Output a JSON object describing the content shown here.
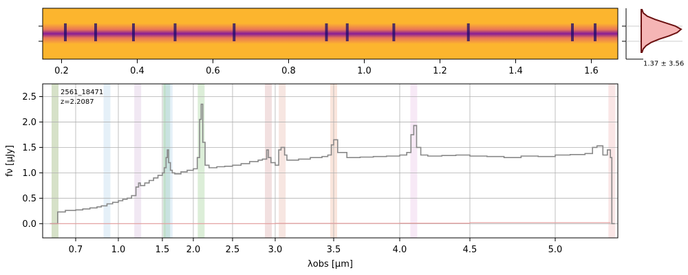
{
  "chart_data": [
    {
      "type": "heatmap",
      "name": "2D spectrum",
      "x_axis": {
        "label": "",
        "ticks": [
          0.2,
          0.4,
          0.6,
          0.8,
          1.0,
          1.2,
          1.4,
          1.6
        ],
        "tick_labels": [
          "0.2",
          "0.4",
          "0.6",
          "0.8",
          "1.0",
          "1.2",
          "1.4",
          "1.6"
        ],
        "range": [
          0.15,
          1.67
        ]
      },
      "colormap": "plasma",
      "emission_features": [
        0.21,
        0.29,
        0.39,
        0.5,
        0.656,
        0.9,
        0.955,
        1.078,
        1.275,
        1.55,
        1.61
      ]
    },
    {
      "type": "histogram",
      "name": "pixel distribution",
      "annotation": "1.37 ± 3.56",
      "profile": [
        0.02,
        0.05,
        0.15,
        0.35,
        0.6,
        0.85,
        1.0,
        0.9,
        0.7,
        0.45,
        0.25,
        0.12,
        0.05,
        0.02
      ]
    },
    {
      "type": "line",
      "name": "1D spectrum",
      "title": "",
      "annotation": [
        "2561_18471",
        "z=2.2087"
      ],
      "xlabel": "λobs [μm]",
      "ylabel": "fν [μJy]",
      "ylim": [
        -0.28,
        2.75
      ],
      "yticks": [
        0.0,
        0.5,
        1.0,
        1.5,
        2.0,
        2.5
      ],
      "ytick_labels": [
        "0.0",
        "0.5",
        "1.0",
        "1.5",
        "2.0",
        "2.5"
      ],
      "xticks": [
        0.7,
        1.0,
        1.5,
        2.0,
        2.5,
        3.0,
        3.5,
        4.0,
        4.5,
        5.0
      ],
      "xtick_labels": [
        "0.7",
        "1.0",
        "1.5",
        "2.0",
        "2.5",
        "3.0",
        "3.5",
        "4.0",
        "4.5",
        "5.0"
      ],
      "grid": true,
      "emission_bands": [
        {
          "x": 0.62,
          "color": "#b5c99a"
        },
        {
          "x": 0.92,
          "color": "#cfe4f2"
        },
        {
          "x": 1.22,
          "color": "#e6d5ea"
        },
        {
          "x": 1.57,
          "color": "#8fc6a0"
        },
        {
          "x": 1.61,
          "color": "#cfe4f2"
        },
        {
          "x": 2.1,
          "color": "#bfe0b8"
        },
        {
          "x": 2.92,
          "color": "#e7c6c6"
        },
        {
          "x": 3.06,
          "color": "#f0d2c8"
        },
        {
          "x": 3.5,
          "color": "#f6cfc0"
        },
        {
          "x": 4.1,
          "color": "#f0d7ef"
        },
        {
          "x": 5.38,
          "color": "#f6d2d2"
        }
      ],
      "series": [
        {
          "name": "flux",
          "color": "#888888",
          "x": [
            0.6,
            0.63,
            0.66,
            0.7,
            0.75,
            0.8,
            0.85,
            0.88,
            0.92,
            0.96,
            1.0,
            1.05,
            1.1,
            1.15,
            1.2,
            1.23,
            1.25,
            1.3,
            1.35,
            1.4,
            1.45,
            1.5,
            1.53,
            1.56,
            1.58,
            1.6,
            1.63,
            1.66,
            1.7,
            1.8,
            1.9,
            2.0,
            2.05,
            2.08,
            2.1,
            2.12,
            2.15,
            2.2,
            2.3,
            2.4,
            2.5,
            2.6,
            2.7,
            2.8,
            2.85,
            2.9,
            2.92,
            2.95,
            3.0,
            3.03,
            3.05,
            3.08,
            3.1,
            3.2,
            3.3,
            3.4,
            3.45,
            3.48,
            3.5,
            3.53,
            3.6,
            3.7,
            3.8,
            3.9,
            4.0,
            4.05,
            4.08,
            4.1,
            4.12,
            4.15,
            4.2,
            4.3,
            4.4,
            4.5,
            4.6,
            4.7,
            4.8,
            4.9,
            5.0,
            5.1,
            5.2,
            5.25,
            5.28,
            5.32,
            5.35,
            5.37,
            5.38,
            5.4
          ],
          "values": [
            0.0,
            0.23,
            0.26,
            0.27,
            0.29,
            0.31,
            0.33,
            0.35,
            0.39,
            0.42,
            0.45,
            0.48,
            0.5,
            0.55,
            0.72,
            0.8,
            0.75,
            0.8,
            0.85,
            0.9,
            0.95,
            1.0,
            1.1,
            1.3,
            1.45,
            1.2,
            1.05,
            1.0,
            0.98,
            1.02,
            1.05,
            1.08,
            1.3,
            2.05,
            2.35,
            1.6,
            1.15,
            1.1,
            1.12,
            1.13,
            1.15,
            1.18,
            1.22,
            1.25,
            1.27,
            1.45,
            1.3,
            1.2,
            1.15,
            1.45,
            1.5,
            1.35,
            1.25,
            1.27,
            1.3,
            1.32,
            1.35,
            1.55,
            1.65,
            1.4,
            1.3,
            1.31,
            1.32,
            1.33,
            1.35,
            1.4,
            1.75,
            1.93,
            1.5,
            1.35,
            1.33,
            1.34,
            1.35,
            1.33,
            1.32,
            1.3,
            1.33,
            1.32,
            1.35,
            1.36,
            1.38,
            1.5,
            1.53,
            1.35,
            1.45,
            1.3,
            0.0,
            0.0
          ]
        },
        {
          "name": "error",
          "color": "#e8a0a0",
          "x": [
            0.6,
            1.0,
            2.0,
            3.0,
            4.0,
            4.5,
            5.0,
            5.37
          ],
          "values": [
            0.0,
            0.0,
            0.0,
            0.005,
            0.01,
            0.02,
            0.02,
            0.02
          ]
        }
      ]
    }
  ]
}
